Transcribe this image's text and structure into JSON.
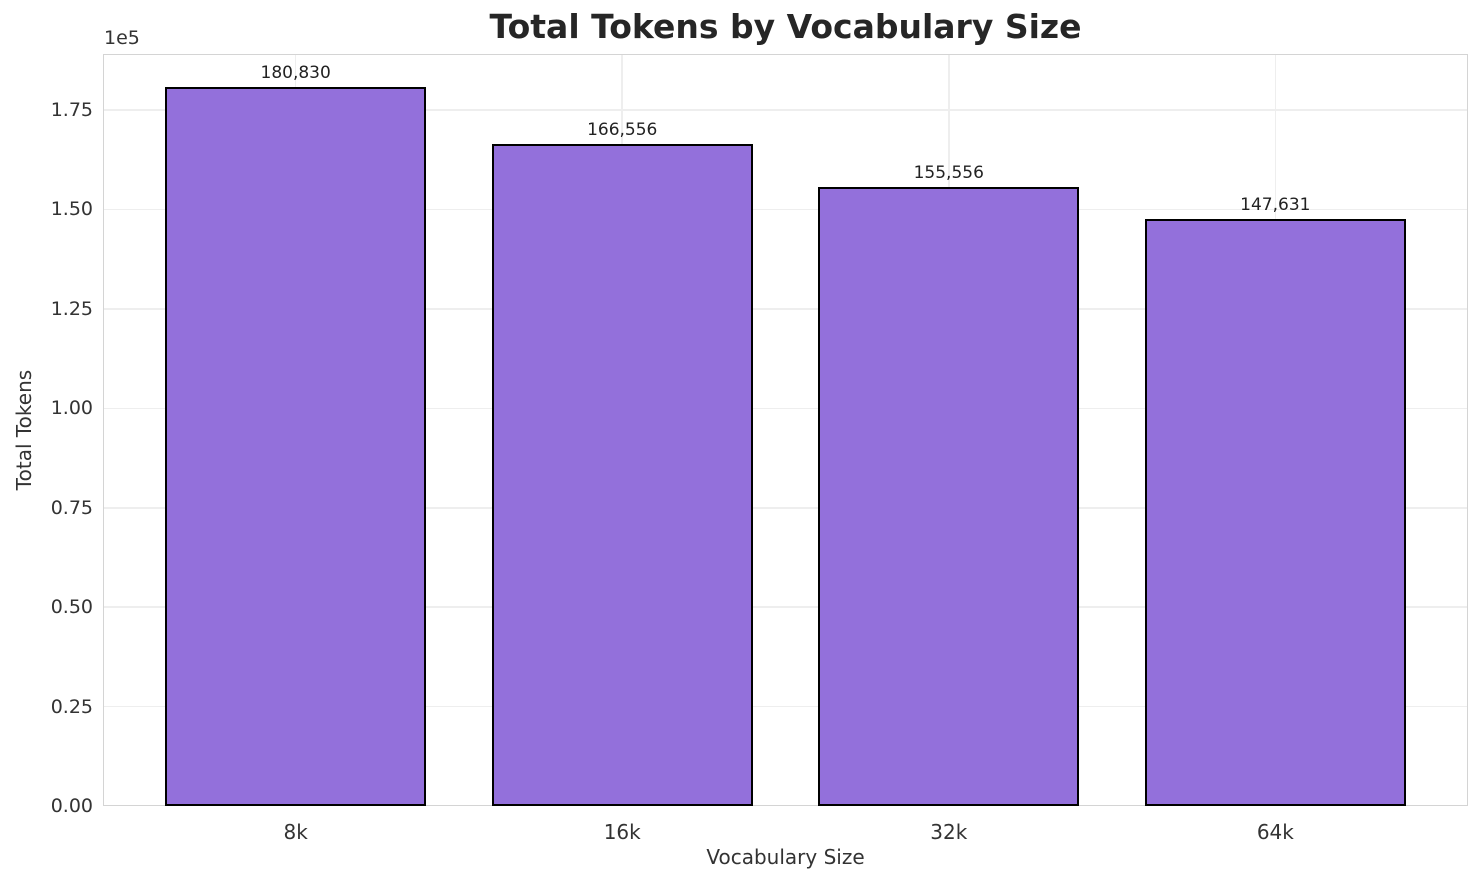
{
  "chart_data": {
    "type": "bar",
    "title": "Total Tokens by Vocabulary Size",
    "xlabel": "Vocabulary Size",
    "ylabel": "Total Tokens",
    "y_offset_text": "1e5",
    "categories": [
      "8k",
      "16k",
      "32k",
      "64k"
    ],
    "values": [
      180830,
      166556,
      155556,
      147631
    ],
    "value_labels": [
      "180,830",
      "166,556",
      "155,556",
      "147,631"
    ],
    "ylim": [
      0,
      189100
    ],
    "yticks": [
      0,
      25000,
      50000,
      75000,
      100000,
      125000,
      150000,
      175000
    ],
    "ytick_labels": [
      "0.00",
      "0.25",
      "0.50",
      "0.75",
      "1.00",
      "1.25",
      "1.50",
      "1.75"
    ],
    "grid": true,
    "legend_visible": false,
    "bar_width_fraction": 0.8,
    "colors": {
      "bar_fill": "#9370DB",
      "bar_edge": "#000000",
      "grid": "#eeeeee",
      "spine": "#d4d4d4",
      "tick_text": "#333333",
      "axis_label_text": "#333333",
      "value_label_text": "#222222",
      "title_text": "#262626",
      "background": "#ffffff"
    }
  }
}
